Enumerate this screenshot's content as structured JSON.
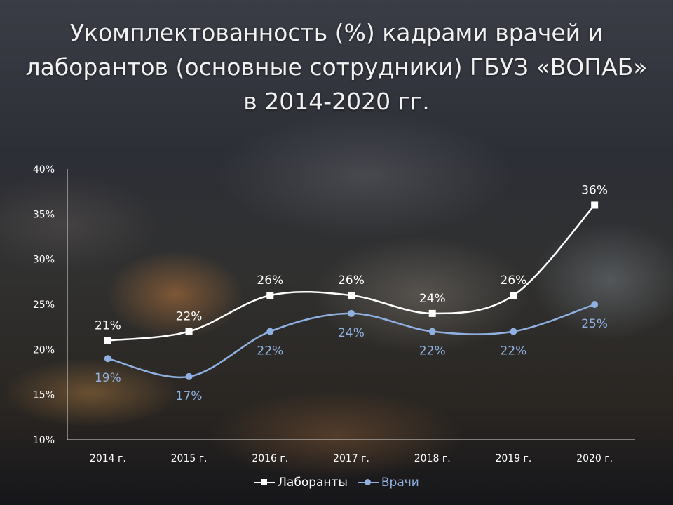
{
  "title_lines": [
    "Укомплектованность (%) кадрами врачей и",
    "лаборантов (основные сотрудники) ГБУЗ «ВОПАБ»",
    "в 2014-2020 гг."
  ],
  "colors": {
    "series_0": "#ffffff",
    "series_1": "#8fb0e0",
    "axis": "#d9d9d9",
    "tick_text": "#ffffff"
  },
  "chart_data": {
    "type": "line",
    "smooth": true,
    "title": "Укомплектованность (%) кадрами врачей и лаборантов (основные сотрудники) ГБУЗ «ВОПАБ» в 2014-2020 гг.",
    "categories": [
      "2014 г.",
      "2015 г.",
      "2016 г.",
      "2017 г.",
      "2018 г.",
      "2019 г.",
      "2020 г."
    ],
    "yticks": [
      "10%",
      "15%",
      "20%",
      "25%",
      "30%",
      "35%",
      "40%"
    ],
    "ylim": [
      10,
      40
    ],
    "ytick_step": 5,
    "grid": false,
    "legend_position": "bottom",
    "series": [
      {
        "name": "Лаборанты",
        "marker": "square",
        "values": [
          21,
          22,
          26,
          26,
          24,
          26,
          36
        ],
        "labels": [
          "21%",
          "22%",
          "26%",
          "26%",
          "24%",
          "26%",
          "36%"
        ],
        "label_position": "above"
      },
      {
        "name": "Врачи",
        "marker": "circle",
        "values": [
          19,
          17,
          22,
          24,
          22,
          22,
          25
        ],
        "labels": [
          "19%",
          "17%",
          "22%",
          "24%",
          "22%",
          "22%",
          "25%"
        ],
        "label_position": "below"
      }
    ]
  }
}
